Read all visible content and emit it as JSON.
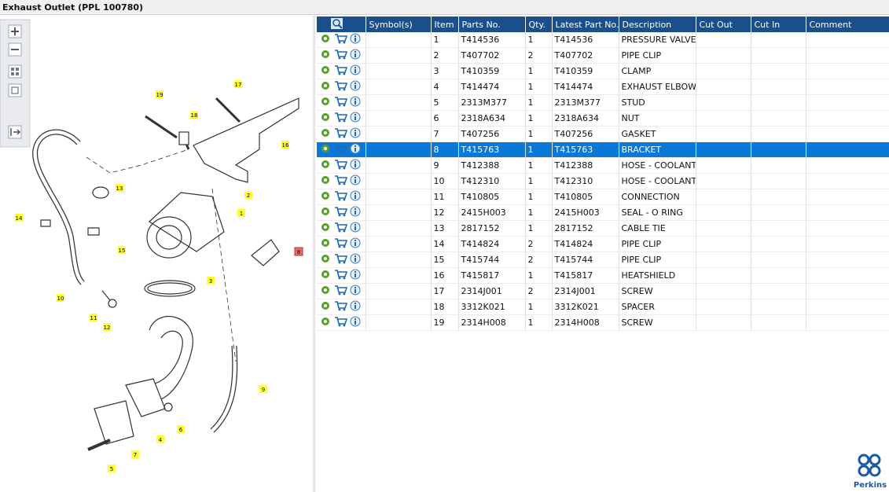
{
  "title": "Exhaust Outlet (PPL 100780)",
  "table": {
    "headers": [
      "Symbol(s)",
      "Item",
      "Parts No.",
      "Qty.",
      "Latest Part No.",
      "Description",
      "Cut Out",
      "Cut In",
      "Comment"
    ],
    "rows": [
      [
        "1",
        "T414536",
        "1",
        "T414536",
        "PRESSURE VALVE"
      ],
      [
        "2",
        "T407702",
        "2",
        "T407702",
        "PIPE CLIP"
      ],
      [
        "3",
        "T410359",
        "1",
        "T410359",
        "CLAMP"
      ],
      [
        "4",
        "T414474",
        "1",
        "T414474",
        "EXHAUST ELBOW"
      ],
      [
        "5",
        "2313M377",
        "1",
        "2313M377",
        "STUD"
      ],
      [
        "6",
        "2318A634",
        "1",
        "2318A634",
        "NUT"
      ],
      [
        "7",
        "T407256",
        "1",
        "T407256",
        "GASKET"
      ],
      [
        "8",
        "T415763",
        "1",
        "T415763",
        "BRACKET"
      ],
      [
        "9",
        "T412388",
        "1",
        "T412388",
        "HOSE - COOLANT"
      ],
      [
        "10",
        "T412310",
        "1",
        "T412310",
        "HOSE - COOLANT"
      ],
      [
        "11",
        "T410805",
        "1",
        "T410805",
        "CONNECTION"
      ],
      [
        "12",
        "2415H003",
        "1",
        "2415H003",
        "SEAL - O RING"
      ],
      [
        "13",
        "2817152",
        "1",
        "2817152",
        "CABLE TIE"
      ],
      [
        "14",
        "T414824",
        "2",
        "T414824",
        "PIPE CLIP"
      ],
      [
        "15",
        "T415744",
        "2",
        "T415744",
        "PIPE CLIP"
      ],
      [
        "16",
        "T415817",
        "1",
        "T415817",
        "HEATSHIELD"
      ],
      [
        "17",
        "2314J001",
        "2",
        "2314J001",
        "SCREW"
      ],
      [
        "18",
        "3312K021",
        "1",
        "3312K021",
        "SPACER"
      ],
      [
        "19",
        "2314H008",
        "1",
        "2314H008",
        "SCREW"
      ]
    ],
    "selected_row": 7
  },
  "diagram": {
    "callouts": [
      "17",
      "19",
      "18",
      "16",
      "13",
      "2",
      "1",
      "14",
      "15",
      "8",
      "3",
      "10",
      "11",
      "12",
      "9",
      "6",
      "4",
      "7",
      "5"
    ]
  },
  "logo": {
    "text": "Perkins"
  }
}
